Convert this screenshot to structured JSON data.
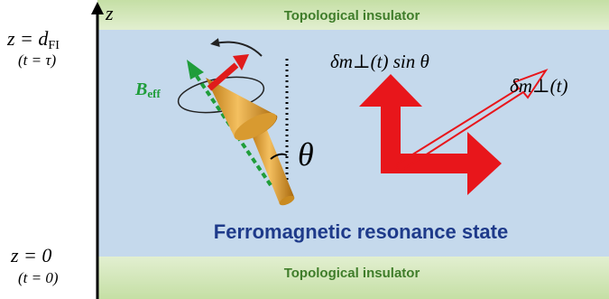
{
  "axis": {
    "label": "z"
  },
  "layers": {
    "top": "Topological insulator",
    "bottom": "Topological insulator",
    "state": "Ferromagnetic resonance state"
  },
  "boundaries": {
    "top": {
      "z_main": "z = d",
      "z_sub": "FI",
      "t": "(t = τ)"
    },
    "bottom": {
      "z": "z = 0",
      "t": "(t = 0)"
    }
  },
  "labels": {
    "field_main": "B",
    "field_sub": "eff",
    "angle": "θ",
    "projection": "δm⊥(t) sin θ",
    "fluctuation": "δm⊥(t)"
  }
}
